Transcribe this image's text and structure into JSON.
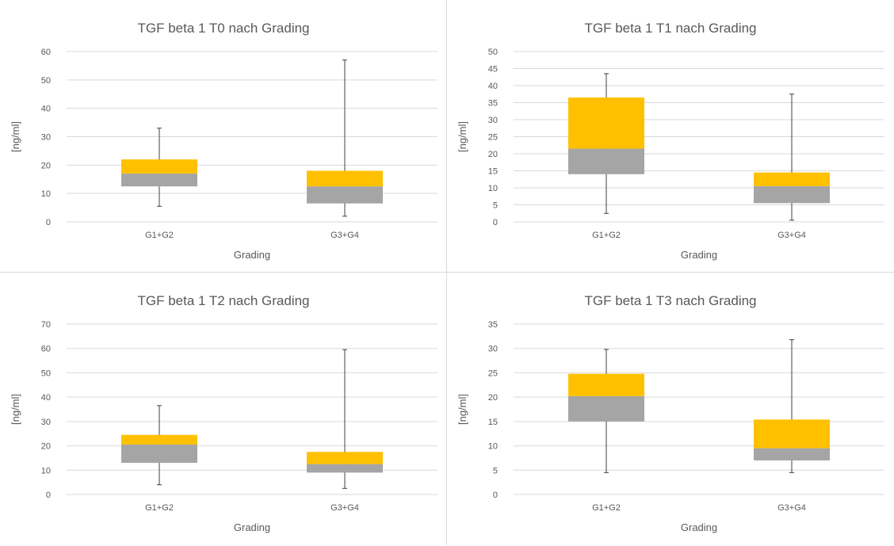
{
  "chart_data": [
    {
      "type": "box",
      "title": "TGF beta 1  T0 nach Grading",
      "xlabel": "Grading",
      "ylabel": "[ng/ml]",
      "ylim": [
        0,
        60
      ],
      "ytick_step": 10,
      "categories": [
        "G1+G2",
        "G3+G4"
      ],
      "boxes": [
        {
          "min": 5.5,
          "q1": 12.5,
          "median": 17,
          "q3": 22,
          "max": 33
        },
        {
          "min": 2,
          "q1": 6.5,
          "median": 12.5,
          "q3": 18,
          "max": 57
        }
      ]
    },
    {
      "type": "box",
      "title": "TGF beta 1  T1 nach Grading",
      "xlabel": "Grading",
      "ylabel": "[ng/ml]",
      "ylim": [
        0,
        50
      ],
      "ytick_step": 5,
      "categories": [
        "G1+G2",
        "G3+G4"
      ],
      "boxes": [
        {
          "min": 2.5,
          "q1": 14,
          "median": 21.5,
          "q3": 36.5,
          "max": 43.5
        },
        {
          "min": 0.5,
          "q1": 5.5,
          "median": 10.5,
          "q3": 14.5,
          "max": 37.5
        }
      ]
    },
    {
      "type": "box",
      "title": "TGF beta 1  T2 nach Grading",
      "xlabel": "Grading",
      "ylabel": "[ng/ml]",
      "ylim": [
        0,
        70
      ],
      "ytick_step": 10,
      "categories": [
        "G1+G2",
        "G3+G4"
      ],
      "boxes": [
        {
          "min": 4,
          "q1": 13,
          "median": 20.5,
          "q3": 24.5,
          "max": 36.5
        },
        {
          "min": 2.5,
          "q1": 9,
          "median": 12.5,
          "q3": 17.5,
          "max": 59.5
        }
      ]
    },
    {
      "type": "box",
      "title": "TGF beta 1  T3 nach Grading",
      "xlabel": "Grading",
      "ylabel": "[ng/ml]",
      "ylim": [
        0,
        35
      ],
      "ytick_step": 5,
      "categories": [
        "G1+G2",
        "G3+G4"
      ],
      "boxes": [
        {
          "min": 4.5,
          "q1": 15,
          "median": 20.2,
          "q3": 24.8,
          "max": 29.8
        },
        {
          "min": 4.5,
          "q1": 7,
          "median": 9.5,
          "q3": 15.4,
          "max": 31.8
        }
      ]
    }
  ],
  "colors": {
    "lower_box": "#a5a5a5",
    "upper_box": "#ffc000",
    "whisker": "#404040",
    "grid": "#d9d9d9",
    "text": "#595959"
  }
}
